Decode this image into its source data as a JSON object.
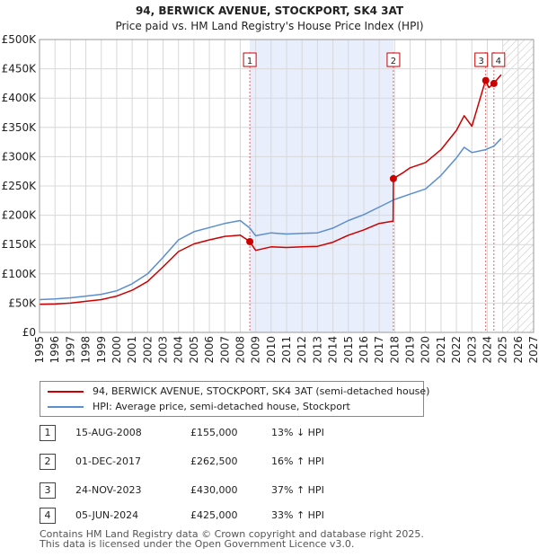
{
  "chart_data": {
    "type": "line",
    "title": "94, BERWICK AVENUE, STOCKPORT, SK4 3AT",
    "subtitle": "Price paid vs. HM Land Registry's House Price Index (HPI)",
    "xlim": [
      1995,
      2027
    ],
    "ylim": [
      0,
      500000
    ],
    "x_ticks": [
      1995,
      1996,
      1997,
      1998,
      1999,
      2000,
      2001,
      2002,
      2003,
      2004,
      2005,
      2006,
      2007,
      2008,
      2009,
      2010,
      2011,
      2012,
      2013,
      2014,
      2015,
      2016,
      2017,
      2018,
      2019,
      2020,
      2021,
      2022,
      2023,
      2024,
      2025,
      2026,
      2027
    ],
    "y_ticks": [
      {
        "value": 0,
        "label": "£0"
      },
      {
        "value": 50000,
        "label": "£50K"
      },
      {
        "value": 100000,
        "label": "£100K"
      },
      {
        "value": 150000,
        "label": "£150K"
      },
      {
        "value": 200000,
        "label": "£200K"
      },
      {
        "value": 250000,
        "label": "£250K"
      },
      {
        "value": 300000,
        "label": "£300K"
      },
      {
        "value": 350000,
        "label": "£350K"
      },
      {
        "value": 400000,
        "label": "£400K"
      },
      {
        "value": 450000,
        "label": "£450K"
      },
      {
        "value": 500000,
        "label": "£500K"
      }
    ],
    "shaded_range": [
      2008.62,
      2017.92
    ],
    "future_hatch_from": 2025.0,
    "series": [
      {
        "name": "94, BERWICK AVENUE, STOCKPORT, SK4 3AT (semi-detached house)",
        "color": "#cc0000",
        "points": [
          [
            1995,
            48000
          ],
          [
            1996,
            48500
          ],
          [
            1997,
            50000
          ],
          [
            1998,
            53000
          ],
          [
            1999,
            56000
          ],
          [
            2000,
            62000
          ],
          [
            2001,
            72000
          ],
          [
            2002,
            87000
          ],
          [
            2003,
            112000
          ],
          [
            2004,
            138000
          ],
          [
            2005,
            151000
          ],
          [
            2006,
            158000
          ],
          [
            2007,
            164000
          ],
          [
            2008.0,
            166000
          ],
          [
            2008.62,
            155000
          ],
          [
            2009.0,
            140000
          ],
          [
            2010,
            146000
          ],
          [
            2011,
            145000
          ],
          [
            2012,
            146000
          ],
          [
            2013,
            147000
          ],
          [
            2014,
            154000
          ],
          [
            2015,
            166000
          ],
          [
            2016,
            175000
          ],
          [
            2017,
            186000
          ],
          [
            2017.9,
            190000
          ],
          [
            2017.92,
            262500
          ],
          [
            2018.5,
            272000
          ],
          [
            2019,
            281000
          ],
          [
            2020,
            290000
          ],
          [
            2021,
            312000
          ],
          [
            2022,
            345000
          ],
          [
            2022.5,
            370000
          ],
          [
            2023.0,
            352000
          ],
          [
            2023.88,
            430000
          ],
          [
            2024.1,
            418000
          ],
          [
            2024.42,
            425000
          ],
          [
            2024.9,
            440000
          ]
        ]
      },
      {
        "name": "HPI: Average price, semi-detached house, Stockport",
        "color": "#5b8ecf",
        "points": [
          [
            1995,
            56000
          ],
          [
            1996,
            57000
          ],
          [
            1997,
            59000
          ],
          [
            1998,
            62000
          ],
          [
            1999,
            65000
          ],
          [
            2000,
            71000
          ],
          [
            2001,
            83000
          ],
          [
            2002,
            100000
          ],
          [
            2003,
            128000
          ],
          [
            2004,
            158000
          ],
          [
            2005,
            172000
          ],
          [
            2006,
            179000
          ],
          [
            2007,
            186000
          ],
          [
            2008.0,
            191000
          ],
          [
            2008.62,
            178000
          ],
          [
            2009.0,
            165000
          ],
          [
            2010,
            170000
          ],
          [
            2011,
            168000
          ],
          [
            2012,
            169000
          ],
          [
            2013,
            170000
          ],
          [
            2014,
            178000
          ],
          [
            2015,
            191000
          ],
          [
            2016,
            201000
          ],
          [
            2017,
            214000
          ],
          [
            2018,
            227000
          ],
          [
            2019,
            236000
          ],
          [
            2020,
            245000
          ],
          [
            2021,
            268000
          ],
          [
            2022,
            298000
          ],
          [
            2022.5,
            316000
          ],
          [
            2023.0,
            307000
          ],
          [
            2023.88,
            312000
          ],
          [
            2024.42,
            318000
          ],
          [
            2024.9,
            331000
          ]
        ]
      }
    ],
    "sales": [
      {
        "num": "1",
        "x": 2008.62,
        "price": 155000,
        "date": "15-AUG-2008",
        "price_label": "£155,000",
        "hpi": "13% ↓ HPI"
      },
      {
        "num": "2",
        "x": 2017.92,
        "price": 262500,
        "date": "01-DEC-2017",
        "price_label": "£262,500",
        "hpi": "16% ↑ HPI"
      },
      {
        "num": "3",
        "x": 2023.9,
        "price": 430000,
        "date": "24-NOV-2023",
        "price_label": "£430,000",
        "hpi": "37% ↑ HPI"
      },
      {
        "num": "4",
        "x": 2024.43,
        "price": 425000,
        "date": "05-JUN-2024",
        "price_label": "£425,000",
        "hpi": "33% ↑ HPI"
      }
    ]
  },
  "footer": {
    "line1": "Contains HM Land Registry data © Crown copyright and database right 2025.",
    "line2": "This data is licensed under the Open Government Licence v3.0."
  }
}
